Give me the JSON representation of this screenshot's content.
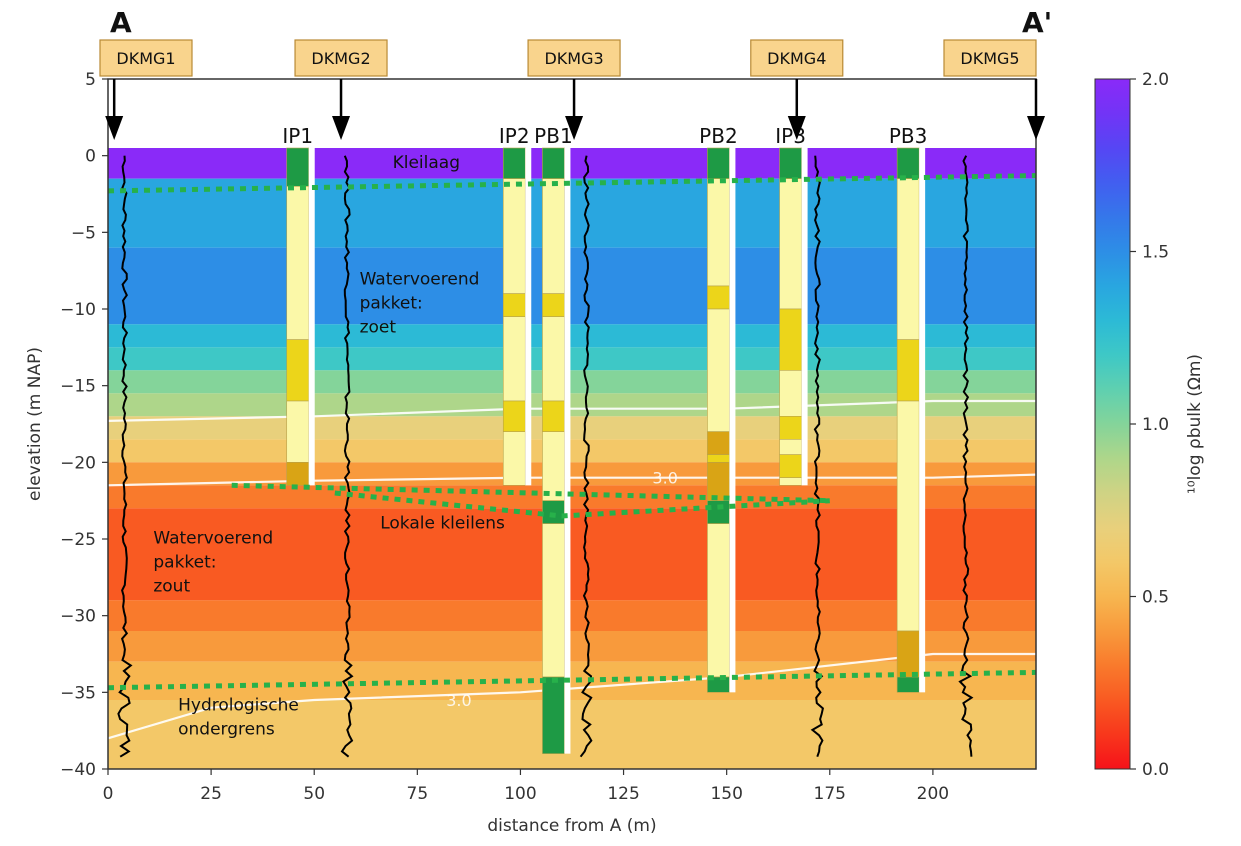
{
  "chart_data": {
    "type": "heatmap",
    "title": "",
    "corner_labels": {
      "start": "A",
      "end": "A'"
    },
    "xlabel": "distance from A (m)",
    "ylabel": "elevation (m NAP)",
    "xlim": [
      0,
      225
    ],
    "ylim": [
      -40,
      5
    ],
    "x_ticks": [
      0,
      25,
      50,
      75,
      100,
      125,
      150,
      175,
      200
    ],
    "x_tick_labels": [
      "0",
      "25",
      "50",
      "75",
      "100",
      "125",
      "150",
      "175",
      "200"
    ],
    "y_ticks": [
      5,
      0,
      -5,
      -10,
      -15,
      -20,
      -25,
      -30,
      -35,
      -40
    ],
    "y_tick_labels": [
      "5",
      "0",
      "−5",
      "−10",
      "−15",
      "−20",
      "−25",
      "−30",
      "−35",
      "−40"
    ],
    "colorbar": {
      "label": "¹⁰log ρbulk (Ωm)",
      "min": 0.0,
      "max": 2.0,
      "ticks": [
        0.0,
        0.5,
        1.0,
        1.5,
        2.0
      ],
      "tick_labels": [
        "0.0",
        "0.5",
        "1.0",
        "1.5",
        "2.0"
      ],
      "colors": [
        "#f5121a",
        "#f8371c",
        "#f95a22",
        "#f97a2c",
        "#f89a3c",
        "#f7b650",
        "#f3c868",
        "#e8d07c",
        "#cfd384",
        "#aed68a",
        "#84d49a",
        "#5fd0b0",
        "#3ec8c6",
        "#2cbad6",
        "#29a6e0",
        "#2d8ee6",
        "#3577ea",
        "#425ef0",
        "#5646f4",
        "#7234f6",
        "#8a2af8"
      ]
    },
    "resistivity_layers": [
      {
        "top": 0.5,
        "bottom": -1.5,
        "value": 1.95
      },
      {
        "top": -1.5,
        "bottom": -6,
        "value": 1.35
      },
      {
        "top": -6,
        "bottom": -11,
        "value": 1.5
      },
      {
        "top": -11,
        "bottom": -12.5,
        "value": 1.3
      },
      {
        "top": -12.5,
        "bottom": -14,
        "value": 1.15
      },
      {
        "top": -14,
        "bottom": -15.5,
        "value": 1.0
      },
      {
        "top": -15.5,
        "bottom": -17,
        "value": 0.85
      },
      {
        "top": -17,
        "bottom": -18.5,
        "value": 0.7
      },
      {
        "top": -18.5,
        "bottom": -20,
        "value": 0.55
      },
      {
        "top": -20,
        "bottom": -21.5,
        "value": 0.4
      },
      {
        "top": -21.5,
        "bottom": -23,
        "value": 0.25
      },
      {
        "top": -23,
        "bottom": -29,
        "value": 0.15
      },
      {
        "top": -29,
        "bottom": -31,
        "value": 0.25
      },
      {
        "top": -31,
        "bottom": -33,
        "value": 0.35
      },
      {
        "top": -33,
        "bottom": -35.5,
        "value": 0.45
      },
      {
        "top": -35.5,
        "bottom": -40,
        "value": 0.55
      }
    ],
    "contours": [
      {
        "label": "",
        "points": [
          [
            0,
            -17.3
          ],
          [
            50,
            -17.0
          ],
          [
            100,
            -16.5
          ],
          [
            150,
            -16.5
          ],
          [
            200,
            -16.0
          ],
          [
            225,
            -16.0
          ]
        ]
      },
      {
        "label": "3.0",
        "points": [
          [
            0,
            -21.5
          ],
          [
            50,
            -21.2
          ],
          [
            100,
            -21.0
          ],
          [
            150,
            -21.0
          ],
          [
            200,
            -21.0
          ],
          [
            225,
            -20.8
          ]
        ]
      },
      {
        "label": "3.0",
        "points": [
          [
            0,
            -38.0
          ],
          [
            25,
            -36.0
          ],
          [
            50,
            -35.5
          ],
          [
            100,
            -35.0
          ],
          [
            150,
            -34.0
          ],
          [
            200,
            -32.5
          ],
          [
            225,
            -32.5
          ]
        ]
      }
    ],
    "interfaces": [
      {
        "name": "Kleilaag",
        "points": [
          [
            0,
            -2.3
          ],
          [
            225,
            -1.3
          ]
        ]
      },
      {
        "name": "Lokale kleilens top",
        "points": [
          [
            30,
            -21.5
          ],
          [
            175,
            -22.5
          ]
        ]
      },
      {
        "name": "Lokale kleilens bottom",
        "points": [
          [
            55,
            -22.0
          ],
          [
            110,
            -23.5
          ],
          [
            175,
            -22.5
          ]
        ]
      },
      {
        "name": "Hydrologische ondergrens",
        "points": [
          [
            0,
            -34.7
          ],
          [
            225,
            -33.7
          ]
        ]
      }
    ],
    "dkmg_wells": [
      {
        "label": "DKMG1",
        "x": 1.5
      },
      {
        "label": "DKMG2",
        "x": 56.5
      },
      {
        "label": "DKMG3",
        "x": 113
      },
      {
        "label": "DKMG4",
        "x": 167
      },
      {
        "label": "DKMG5",
        "x": 225
      }
    ],
    "boreholes": [
      {
        "label": "IP1",
        "x": 46,
        "top": 0.5,
        "bottom": -21.5,
        "units": [
          {
            "type": "clay",
            "top": 0.5,
            "bottom": -2
          },
          {
            "type": "fine-sand",
            "top": -2,
            "bottom": -12
          },
          {
            "type": "medium-sand",
            "top": -12,
            "bottom": -16
          },
          {
            "type": "fine-sand",
            "top": -16,
            "bottom": -20
          },
          {
            "type": "coarse-sand",
            "top": -20,
            "bottom": -21.5
          }
        ]
      },
      {
        "label": "IP2",
        "x": 98.5,
        "top": 0.5,
        "bottom": -21.5,
        "units": [
          {
            "type": "clay",
            "top": 0.5,
            "bottom": -1.5
          },
          {
            "type": "fine-sand",
            "top": -1.5,
            "bottom": -9
          },
          {
            "type": "medium-sand",
            "top": -9,
            "bottom": -10.5
          },
          {
            "type": "fine-sand",
            "top": -10.5,
            "bottom": -16
          },
          {
            "type": "medium-sand",
            "top": -16,
            "bottom": -18
          },
          {
            "type": "fine-sand",
            "top": -18,
            "bottom": -21.5
          }
        ]
      },
      {
        "label": "PB1",
        "x": 108,
        "top": 0.5,
        "bottom": -39,
        "units": [
          {
            "type": "clay",
            "top": 0.5,
            "bottom": -1.5
          },
          {
            "type": "fine-sand",
            "top": -1.5,
            "bottom": -9
          },
          {
            "type": "medium-sand",
            "top": -9,
            "bottom": -10.5
          },
          {
            "type": "fine-sand",
            "top": -10.5,
            "bottom": -16
          },
          {
            "type": "medium-sand",
            "top": -16,
            "bottom": -18
          },
          {
            "type": "fine-sand",
            "top": -18,
            "bottom": -22.5
          },
          {
            "type": "clay",
            "top": -22.5,
            "bottom": -24
          },
          {
            "type": "fine-sand",
            "top": -24,
            "bottom": -34
          },
          {
            "type": "clay",
            "top": -34,
            "bottom": -39
          }
        ]
      },
      {
        "label": "PB2",
        "x": 148,
        "top": 0.5,
        "bottom": -35,
        "units": [
          {
            "type": "clay",
            "top": 0.5,
            "bottom": -1.5
          },
          {
            "type": "fine-sand",
            "top": -1.5,
            "bottom": -8.5
          },
          {
            "type": "medium-sand",
            "top": -8.5,
            "bottom": -10
          },
          {
            "type": "fine-sand",
            "top": -10,
            "bottom": -18
          },
          {
            "type": "coarse-sand",
            "top": -18,
            "bottom": -19.5
          },
          {
            "type": "medium-sand",
            "top": -19.5,
            "bottom": -20
          },
          {
            "type": "coarse-sand",
            "top": -20,
            "bottom": -22.5
          },
          {
            "type": "clay",
            "top": -22.5,
            "bottom": -24
          },
          {
            "type": "fine-sand",
            "top": -24,
            "bottom": -34
          },
          {
            "type": "clay",
            "top": -34,
            "bottom": -35
          }
        ]
      },
      {
        "label": "IP3",
        "x": 165.5,
        "top": 0.5,
        "bottom": -21.5,
        "units": [
          {
            "type": "clay",
            "top": 0.5,
            "bottom": -1.5
          },
          {
            "type": "fine-sand",
            "top": -1.5,
            "bottom": -10
          },
          {
            "type": "medium-sand",
            "top": -10,
            "bottom": -14
          },
          {
            "type": "fine-sand",
            "top": -14,
            "bottom": -17
          },
          {
            "type": "medium-sand",
            "top": -17,
            "bottom": -18.5
          },
          {
            "type": "fine-sand",
            "top": -18.5,
            "bottom": -19.5
          },
          {
            "type": "medium-sand",
            "top": -19.5,
            "bottom": -21
          },
          {
            "type": "fine-sand",
            "top": -21,
            "bottom": -21.5
          }
        ]
      },
      {
        "label": "PB3",
        "x": 194,
        "top": 0.5,
        "bottom": -35,
        "units": [
          {
            "type": "clay",
            "top": 0.5,
            "bottom": -1.5
          },
          {
            "type": "fine-sand",
            "top": -1.5,
            "bottom": -12
          },
          {
            "type": "medium-sand",
            "top": -12,
            "bottom": -16
          },
          {
            "type": "fine-sand",
            "top": -16,
            "bottom": -31
          },
          {
            "type": "coarse-sand",
            "top": -31,
            "bottom": -34
          },
          {
            "type": "clay",
            "top": -34,
            "bottom": -35
          }
        ]
      }
    ],
    "unit_colors": {
      "clay": "#1e9a45",
      "fine-sand": "#fbf8a8",
      "medium-sand": "#ecd51a",
      "coarse-sand": "#d9a415"
    },
    "annotations": [
      {
        "lines": [
          "Kleilaag"
        ],
        "x": 69,
        "y": -0.8
      },
      {
        "lines": [
          "Watervoerend",
          "pakket:",
          "zoet"
        ],
        "x": 61,
        "y": -8.4
      },
      {
        "lines": [
          "Watervoerend",
          "pakket:",
          "zout"
        ],
        "x": 11,
        "y": -25.3
      },
      {
        "lines": [
          "Lokale kleilens"
        ],
        "x": 66,
        "y": -24.3
      },
      {
        "lines": [
          "Hydrologische",
          "ondergrens"
        ],
        "x": 17,
        "y": -36.2
      }
    ]
  }
}
